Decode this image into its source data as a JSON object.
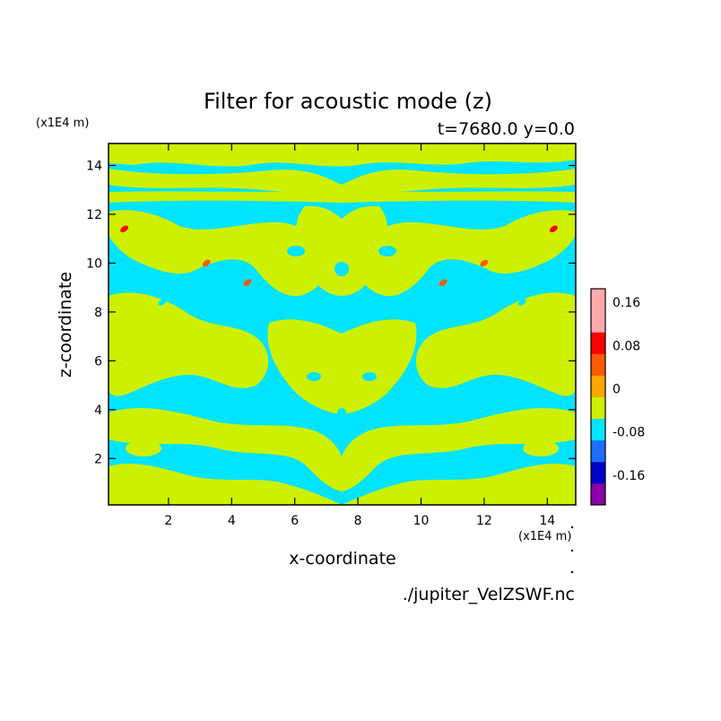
{
  "chart_data": {
    "type": "heatmap",
    "title": "Filter for acoustic mode (z)",
    "subtitle": "t=7680.0 y=0.0",
    "xlabel": "x-coordinate",
    "ylabel": "z-coordinate",
    "x_unit": "(x1E4 m)",
    "y_unit": "(x1E4 m)",
    "xlim": [
      0.1,
      14.9
    ],
    "ylim": [
      0.1,
      14.9
    ],
    "x_ticks": [
      2,
      4,
      6,
      8,
      10,
      12,
      14
    ],
    "y_ticks": [
      2,
      4,
      6,
      8,
      10,
      12,
      14
    ],
    "colorbar": {
      "levels": [
        -0.2,
        -0.16,
        -0.12,
        -0.08,
        -0.04,
        0,
        0.04,
        0.08,
        0.12,
        0.16,
        0.2
      ],
      "tick_labels": [
        "-0.16",
        "-0.08",
        "0",
        "0.08",
        "0.16"
      ],
      "tick_values": [
        -0.16,
        -0.08,
        0,
        0.08,
        0.16
      ],
      "colors": [
        "#8a00a8",
        "#0000c8",
        "#1e6eff",
        "#00e4ff",
        "#ccf000",
        "#ffa500",
        "#ff5a00",
        "#ff0000",
        "#ffaaaa",
        "#ffaaaa"
      ]
    },
    "field_description_colors": {
      "background_level": "#00e4ff",
      "positive_level": "#ccf000"
    },
    "features": [
      {
        "x": 1.8,
        "z": 8.4,
        "level": -0.08
      },
      {
        "x": 13.2,
        "z": 8.4,
        "level": -0.08
      },
      {
        "x": 3.2,
        "z": 10.0,
        "level": 0.04
      },
      {
        "x": 12.0,
        "z": 10.0,
        "level": 0.04
      },
      {
        "x": 0.6,
        "z": 11.4,
        "level": 0.08
      },
      {
        "x": 14.2,
        "z": 11.4,
        "level": 0.08
      },
      {
        "x": 4.5,
        "z": 9.2,
        "level": 0.04
      },
      {
        "x": 10.7,
        "z": 9.2,
        "level": 0.04
      }
    ]
  },
  "footer": {
    "file": "./jupiter_VelZSWF.nc"
  }
}
